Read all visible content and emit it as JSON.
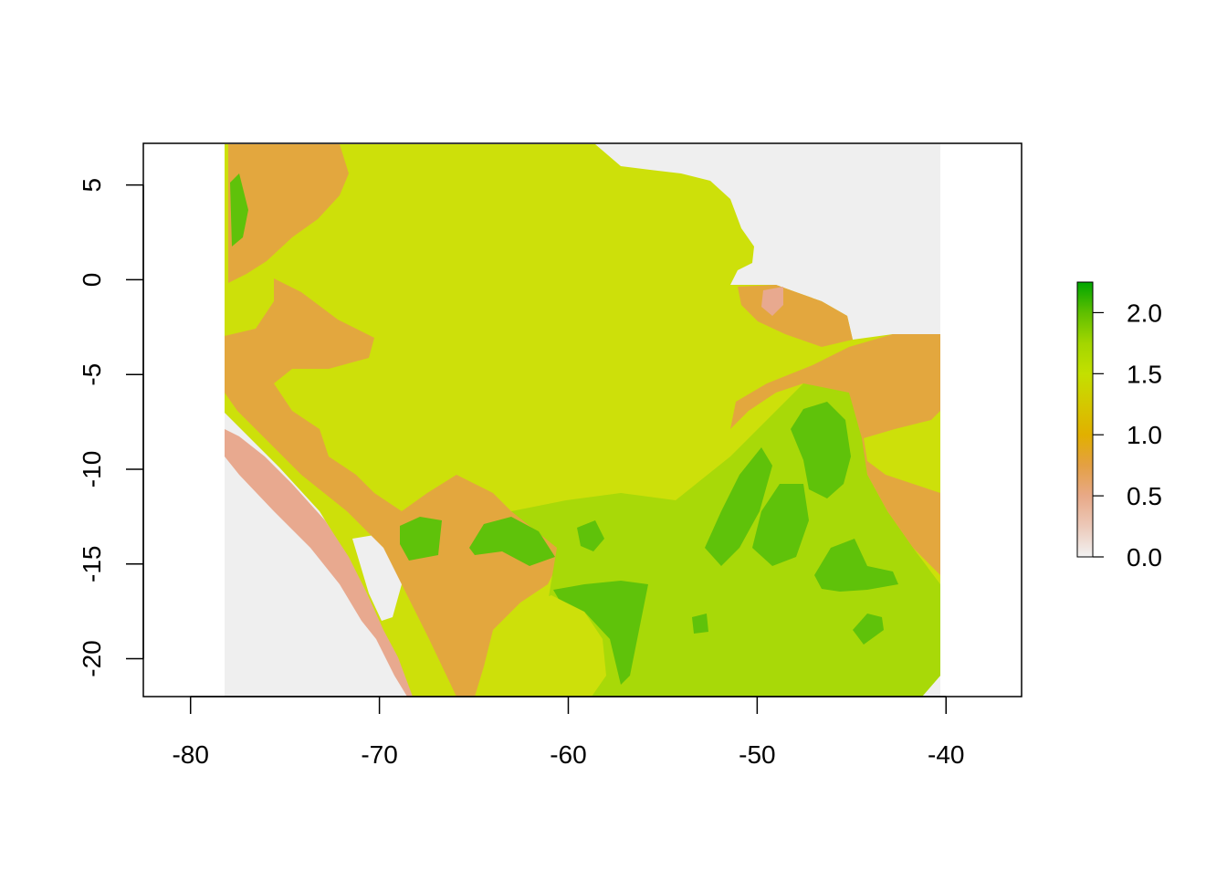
{
  "chart_data": {
    "type": "heatmap",
    "title": "",
    "xlabel": "",
    "ylabel": "",
    "xlim": [
      -82.5,
      -36.0
    ],
    "ylim": [
      -22.0,
      7.2
    ],
    "extent": {
      "xmin": -78.0,
      "xmax": -40.0,
      "ymin": -22.0,
      "ymax": 7.2
    },
    "x_ticks": [
      -80,
      -70,
      -60,
      -50,
      -40
    ],
    "x_tick_labels": [
      "-80",
      "-70",
      "-60",
      "-50",
      "-40"
    ],
    "y_ticks": [
      5,
      0,
      -5,
      -10,
      -15,
      -20
    ],
    "y_tick_labels": [
      "5",
      "0",
      "-5",
      "-10",
      "-15",
      "-20"
    ],
    "nodata_color": "#efefef",
    "legend": {
      "placement": "right",
      "range": [
        0.0,
        2.25
      ],
      "ticks": [
        0.0,
        0.5,
        1.0,
        1.5,
        2.0
      ],
      "tick_labels": [
        "0.0",
        "0.5",
        "1.0",
        "1.5",
        "2.0"
      ],
      "colors": [
        "#f2f2f2",
        "#ecc9b9",
        "#e8a987",
        "#e4a043",
        "#e1b000",
        "#d4c800",
        "#c3e000",
        "#a3d600",
        "#5fbf00",
        "#00a600"
      ]
    },
    "value_classes": [
      {
        "value": 0.35,
        "color": "#e8a98f"
      },
      {
        "value": 0.75,
        "color": "#e3a73e"
      },
      {
        "value": 1.2,
        "color": "#cde00a"
      },
      {
        "value": 1.45,
        "color": "#a8d908"
      },
      {
        "value": 1.75,
        "color": "#5fc20a"
      },
      {
        "value": 2.2,
        "color": "#2aa60a"
      }
    ]
  }
}
